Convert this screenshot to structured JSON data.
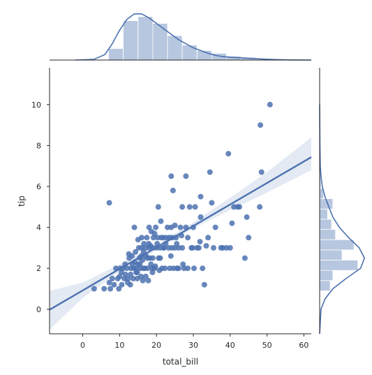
{
  "chart_data": {
    "type": "scatter",
    "style": "jointplot-reg",
    "xlabel": "total_bill",
    "ylabel": "tip",
    "xlim": [
      -9,
      62
    ],
    "ylim": [
      -1.2,
      11.8
    ],
    "xticks": [
      0,
      10,
      20,
      30,
      40,
      50,
      60
    ],
    "yticks": [
      0,
      2,
      4,
      6,
      8,
      10
    ],
    "grid": false,
    "color": "#4c72b0",
    "band_color": "#4c72b0",
    "regression": {
      "slope": 0.105,
      "intercept": 0.92,
      "ci_band": [
        {
          "x": -9,
          "lo": -1.0,
          "hi": 0.9
        },
        {
          "x": 0,
          "lo": 0.55,
          "hi": 1.3
        },
        {
          "x": 10,
          "lo": 1.85,
          "hi": 2.2
        },
        {
          "x": 20,
          "lo": 2.9,
          "hi": 3.15
        },
        {
          "x": 30,
          "lo": 3.95,
          "hi": 4.25
        },
        {
          "x": 40,
          "lo": 4.85,
          "hi": 5.45
        },
        {
          "x": 50,
          "lo": 5.7,
          "hi": 6.7
        },
        {
          "x": 62,
          "lo": 6.8,
          "hi": 8.4
        }
      ]
    },
    "points": [
      [
        3.1,
        1.0
      ],
      [
        5.8,
        1.0
      ],
      [
        7.2,
        1.3
      ],
      [
        7.5,
        1.0
      ],
      [
        8.0,
        1.5
      ],
      [
        8.5,
        1.2
      ],
      [
        9.0,
        2.0
      ],
      [
        9.5,
        1.5
      ],
      [
        10.0,
        1.6
      ],
      [
        10.2,
        2.0
      ],
      [
        10.6,
        1.2
      ],
      [
        11.0,
        2.0
      ],
      [
        11.3,
        1.5
      ],
      [
        11.6,
        1.7
      ],
      [
        12.0,
        2.0
      ],
      [
        12.3,
        1.5
      ],
      [
        12.6,
        2.5
      ],
      [
        12.9,
        1.2
      ],
      [
        13.1,
        2.0
      ],
      [
        13.4,
        2.6
      ],
      [
        13.7,
        1.5
      ],
      [
        13.9,
        2.0
      ],
      [
        14.1,
        2.3
      ],
      [
        14.3,
        2.8
      ],
      [
        14.5,
        2.0
      ],
      [
        14.8,
        1.8
      ],
      [
        15.0,
        2.2
      ],
      [
        15.2,
        3.0
      ],
      [
        15.4,
        2.5
      ],
      [
        15.6,
        2.0
      ],
      [
        15.8,
        1.6
      ],
      [
        16.0,
        3.0
      ],
      [
        16.2,
        2.4
      ],
      [
        16.4,
        2.0
      ],
      [
        16.6,
        3.2
      ],
      [
        16.8,
        2.0
      ],
      [
        17.0,
        3.0
      ],
      [
        17.2,
        2.6
      ],
      [
        17.4,
        3.5
      ],
      [
        17.6,
        2.0
      ],
      [
        17.8,
        1.4
      ],
      [
        18.0,
        3.0
      ],
      [
        18.2,
        2.5
      ],
      [
        18.4,
        3.1
      ],
      [
        18.6,
        3.8
      ],
      [
        18.8,
        2.0
      ],
      [
        19.0,
        3.0
      ],
      [
        19.2,
        3.5
      ],
      [
        19.5,
        2.0
      ],
      [
        19.8,
        4.0
      ],
      [
        20.0,
        3.0
      ],
      [
        20.3,
        3.5
      ],
      [
        20.6,
        2.5
      ],
      [
        21.0,
        3.0
      ],
      [
        21.2,
        4.3
      ],
      [
        21.5,
        2.0
      ],
      [
        21.8,
        3.5
      ],
      [
        22.0,
        3.0
      ],
      [
        22.3,
        2.0
      ],
      [
        22.6,
        3.5
      ],
      [
        23.0,
        4.0
      ],
      [
        23.3,
        3.0
      ],
      [
        23.6,
        2.0
      ],
      [
        24.0,
        4.0
      ],
      [
        24.3,
        3.5
      ],
      [
        24.6,
        2.0
      ],
      [
        25.0,
        3.0
      ],
      [
        25.3,
        3.5
      ],
      [
        25.6,
        2.0
      ],
      [
        26.0,
        3.0
      ],
      [
        26.5,
        4.0
      ],
      [
        27.0,
        3.0
      ],
      [
        27.5,
        2.0
      ],
      [
        28.0,
        4.0
      ],
      [
        28.5,
        3.5
      ],
      [
        29.0,
        5.0
      ],
      [
        29.5,
        3.0
      ],
      [
        30.0,
        4.0
      ],
      [
        30.5,
        5.0
      ],
      [
        31.0,
        3.0
      ],
      [
        31.5,
        3.0
      ],
      [
        32.0,
        4.5
      ],
      [
        32.5,
        2.0
      ],
      [
        33.0,
        1.2
      ],
      [
        34.0,
        3.5
      ],
      [
        34.5,
        6.7
      ],
      [
        35.0,
        5.2
      ],
      [
        36.0,
        4.0
      ],
      [
        38.0,
        3.0
      ],
      [
        39.0,
        3.0
      ],
      [
        39.5,
        7.6
      ],
      [
        40.0,
        3.0
      ],
      [
        41.0,
        5.0
      ],
      [
        42.0,
        5.0
      ],
      [
        44.0,
        2.5
      ],
      [
        45.0,
        3.5
      ],
      [
        48.0,
        5.0
      ],
      [
        48.2,
        9.0
      ],
      [
        48.5,
        6.7
      ],
      [
        50.8,
        10.0
      ],
      [
        7.2,
        5.2
      ],
      [
        14.0,
        4.0
      ],
      [
        20.5,
        5.0
      ],
      [
        24.0,
        6.5
      ],
      [
        24.5,
        5.8
      ],
      [
        27.0,
        5.0
      ],
      [
        28.0,
        6.5
      ],
      [
        32.0,
        5.5
      ],
      [
        22.0,
        3.0
      ],
      [
        21.0,
        2.5
      ],
      [
        19.0,
        2.5
      ],
      [
        17.5,
        2.5
      ],
      [
        16.5,
        2.8
      ],
      [
        15.5,
        2.2
      ],
      [
        14.5,
        1.8
      ],
      [
        13.5,
        2.2
      ],
      [
        12.5,
        2.7
      ],
      [
        11.5,
        2.2
      ],
      [
        10.5,
        1.8
      ],
      [
        18.5,
        2.2
      ],
      [
        20.2,
        3.2
      ],
      [
        22.5,
        3.2
      ],
      [
        24.2,
        3.0
      ],
      [
        25.5,
        3.2
      ],
      [
        26.0,
        2.0
      ],
      [
        28.5,
        2.0
      ],
      [
        30.2,
        2.0
      ],
      [
        16.0,
        3.5
      ],
      [
        15.0,
        3.4
      ],
      [
        18.0,
        4.0
      ],
      [
        19.5,
        3.7
      ],
      [
        21.3,
        3.5
      ],
      [
        23.5,
        3.5
      ],
      [
        25.0,
        4.1
      ],
      [
        26.8,
        3.6
      ],
      [
        29.8,
        3.0
      ],
      [
        17.1,
        1.6
      ],
      [
        16.3,
        1.4
      ],
      [
        14.8,
        1.5
      ],
      [
        13.0,
        1.7
      ],
      [
        12.2,
        1.3
      ],
      [
        20.8,
        1.9
      ],
      [
        18.9,
        1.8
      ],
      [
        19.7,
        2.1
      ],
      [
        15.9,
        2.6
      ],
      [
        17.9,
        3.2
      ],
      [
        23.9,
        2.6
      ],
      [
        27.2,
        2.2
      ],
      [
        31.8,
        3.3
      ],
      [
        33.5,
        3.1
      ],
      [
        35.5,
        3.0
      ],
      [
        37.5,
        3.0
      ],
      [
        40.5,
        4.2
      ],
      [
        42.5,
        5.0
      ],
      [
        44.5,
        4.5
      ],
      [
        9.8,
        1.0
      ]
    ],
    "top_hist": {
      "bins": [
        [
          7,
          11,
          0.085
        ],
        [
          11,
          15,
          0.29
        ],
        [
          15,
          19,
          0.32
        ],
        [
          19,
          23,
          0.27
        ],
        [
          23,
          27,
          0.18
        ],
        [
          27,
          31,
          0.11
        ],
        [
          31,
          35,
          0.07
        ],
        [
          35,
          39,
          0.05
        ],
        [
          39,
          43,
          0.03
        ],
        [
          43,
          47,
          0.02
        ],
        [
          47,
          51,
          0.006
        ]
      ],
      "kde": [
        [
          -2,
          0
        ],
        [
          3,
          0.005
        ],
        [
          6,
          0.04
        ],
        [
          8,
          0.12
        ],
        [
          10,
          0.22
        ],
        [
          12,
          0.3
        ],
        [
          14,
          0.34
        ],
        [
          16,
          0.34
        ],
        [
          18,
          0.31
        ],
        [
          20,
          0.27
        ],
        [
          22,
          0.23
        ],
        [
          24,
          0.19
        ],
        [
          26,
          0.15
        ],
        [
          28,
          0.12
        ],
        [
          30,
          0.09
        ],
        [
          32,
          0.07
        ],
        [
          34,
          0.05
        ],
        [
          36,
          0.035
        ],
        [
          38,
          0.025
        ],
        [
          40,
          0.02
        ],
        [
          42,
          0.017
        ],
        [
          44,
          0.015
        ],
        [
          46,
          0.012
        ],
        [
          48,
          0.009
        ],
        [
          50,
          0.006
        ],
        [
          53,
          0.003
        ],
        [
          57,
          0.001
        ],
        [
          62,
          0
        ]
      ],
      "dmax": 0.36
    },
    "right_hist": {
      "bins": [
        [
          0.9,
          1.4,
          0.08
        ],
        [
          1.4,
          1.9,
          0.1
        ],
        [
          1.9,
          2.4,
          0.29
        ],
        [
          2.4,
          2.9,
          0.17
        ],
        [
          2.9,
          3.4,
          0.26
        ],
        [
          3.4,
          3.9,
          0.12
        ],
        [
          3.9,
          4.4,
          0.09
        ],
        [
          4.4,
          4.9,
          0.06
        ],
        [
          4.9,
          5.4,
          0.1
        ],
        [
          5.4,
          5.9,
          0.03
        ],
        [
          5.9,
          6.4,
          0.01
        ],
        [
          6.4,
          6.9,
          0.008
        ],
        [
          6.9,
          7.4,
          0.003
        ],
        [
          7.4,
          7.9,
          0.003
        ]
      ],
      "kde": [
        [
          -1.2,
          0
        ],
        [
          0,
          0.01
        ],
        [
          0.5,
          0.04
        ],
        [
          1.0,
          0.1
        ],
        [
          1.5,
          0.2
        ],
        [
          2.0,
          0.31
        ],
        [
          2.5,
          0.34
        ],
        [
          3.0,
          0.3
        ],
        [
          3.5,
          0.22
        ],
        [
          4.0,
          0.15
        ],
        [
          4.5,
          0.1
        ],
        [
          5.0,
          0.07
        ],
        [
          5.5,
          0.04
        ],
        [
          6.0,
          0.02
        ],
        [
          6.5,
          0.01
        ],
        [
          7.0,
          0.005
        ],
        [
          8.0,
          0.002
        ],
        [
          9.0,
          0.001
        ],
        [
          10.0,
          0.0
        ]
      ],
      "dmax": 0.36
    }
  }
}
